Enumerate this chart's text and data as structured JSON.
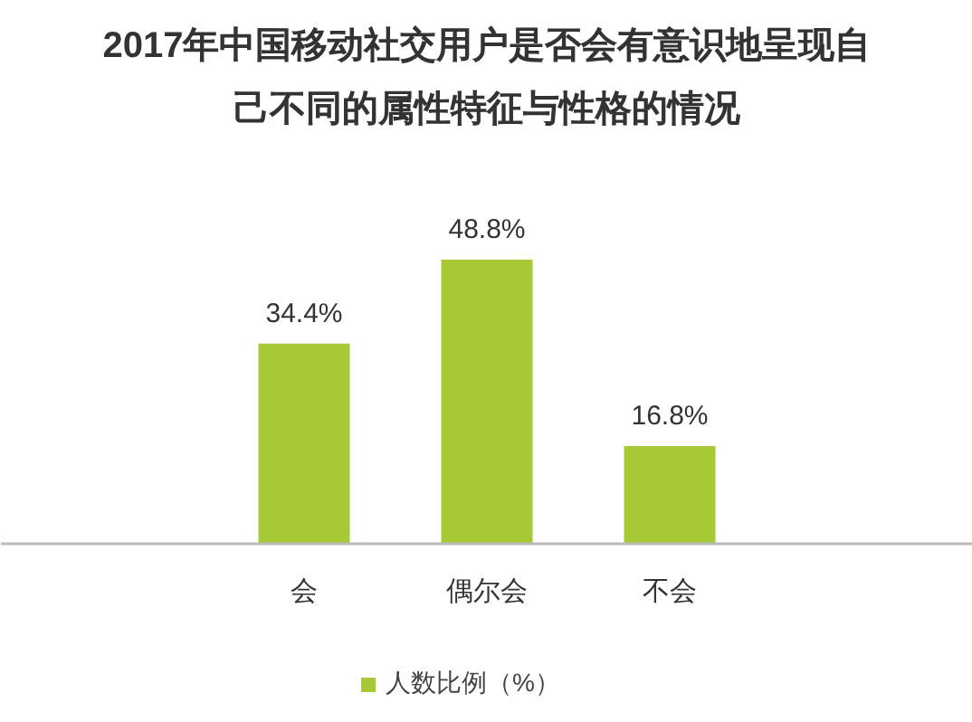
{
  "chart_data": {
    "type": "bar",
    "title": "2017年中国移动社交用户是否会有意识地呈现自己不同的属性特征与性格的情况",
    "categories": [
      "会",
      "偶尔会",
      "不会"
    ],
    "series": [
      {
        "name": "人数比例（%）",
        "color": "#a6c935",
        "values": [
          34.4,
          48.8,
          16.8
        ],
        "value_labels": [
          "34.4%",
          "48.8%",
          "16.8%"
        ]
      }
    ],
    "data_labels": true,
    "legend": "bottom"
  }
}
